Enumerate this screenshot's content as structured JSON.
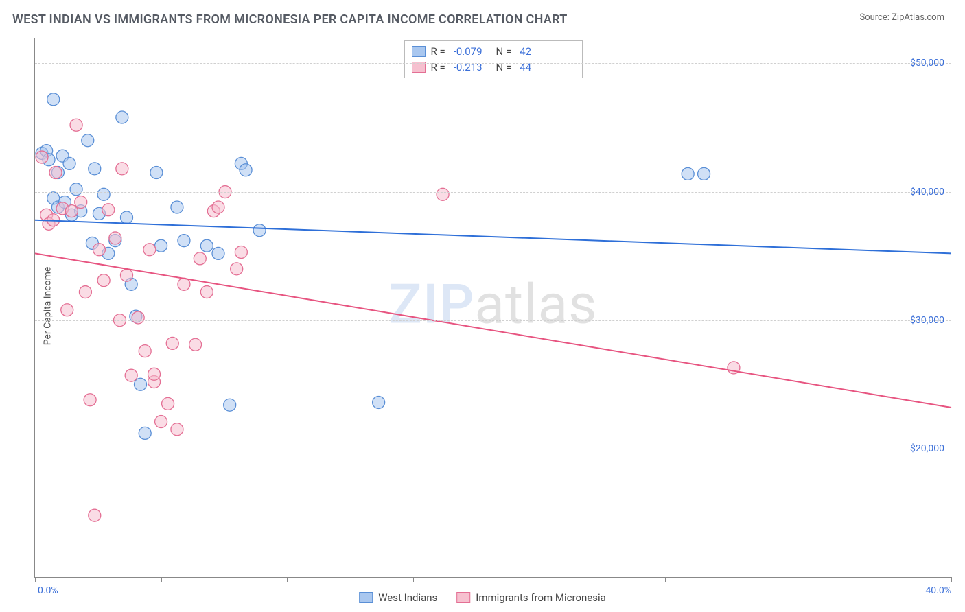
{
  "title": "WEST INDIAN VS IMMIGRANTS FROM MICRONESIA PER CAPITA INCOME CORRELATION CHART",
  "source_label": "Source: ",
  "source_name": "ZipAtlas.com",
  "y_axis_label": "Per Capita Income",
  "watermark": {
    "part1": "ZIP",
    "part2": "atlas"
  },
  "chart": {
    "type": "scatter",
    "x_domain": [
      0,
      40
    ],
    "y_domain": [
      10000,
      52000
    ],
    "y_ticks": [
      {
        "v": 20000,
        "label": "$20,000"
      },
      {
        "v": 30000,
        "label": "$30,000"
      },
      {
        "v": 40000,
        "label": "$40,000"
      },
      {
        "v": 50000,
        "label": "$50,000"
      }
    ],
    "x_tick_positions": [
      0,
      5.5,
      11,
      16.5,
      22,
      27.5,
      33,
      40
    ],
    "x_tick_labels": {
      "left": "0.0%",
      "right": "40.0%"
    },
    "grid_color": "#d0d0d0",
    "background_color": "#ffffff",
    "marker_radius": 9,
    "marker_opacity": 0.55,
    "line_width": 2,
    "series": [
      {
        "name": "West Indians",
        "fill": "#a9c7ef",
        "stroke": "#5a8fd6",
        "line_color": "#2e6fd8",
        "R": "-0.079",
        "N": "42",
        "trend": {
          "x1": 0,
          "y1": 37800,
          "x2": 40,
          "y2": 35200
        },
        "points": [
          [
            0.3,
            43000
          ],
          [
            0.5,
            43200
          ],
          [
            0.6,
            42500
          ],
          [
            0.8,
            47200
          ],
          [
            0.8,
            39500
          ],
          [
            1.0,
            41500
          ],
          [
            1.0,
            38800
          ],
          [
            1.2,
            42800
          ],
          [
            1.3,
            39200
          ],
          [
            1.5,
            42200
          ],
          [
            1.6,
            38200
          ],
          [
            1.8,
            40200
          ],
          [
            2.0,
            38500
          ],
          [
            2.3,
            44000
          ],
          [
            2.5,
            36000
          ],
          [
            2.6,
            41800
          ],
          [
            2.8,
            38300
          ],
          [
            3.0,
            39800
          ],
          [
            3.2,
            35200
          ],
          [
            3.5,
            36200
          ],
          [
            3.8,
            45800
          ],
          [
            4.0,
            38000
          ],
          [
            4.2,
            32800
          ],
          [
            4.4,
            30300
          ],
          [
            4.6,
            25000
          ],
          [
            4.8,
            21200
          ],
          [
            5.3,
            41500
          ],
          [
            5.5,
            35800
          ],
          [
            6.2,
            38800
          ],
          [
            6.5,
            36200
          ],
          [
            7.5,
            35800
          ],
          [
            8.0,
            35200
          ],
          [
            8.5,
            23400
          ],
          [
            9.0,
            42200
          ],
          [
            9.2,
            41700
          ],
          [
            9.8,
            37000
          ],
          [
            15.0,
            23600
          ],
          [
            28.5,
            41400
          ],
          [
            29.2,
            41400
          ]
        ]
      },
      {
        "name": "Immigrants from Micronesia",
        "fill": "#f6c0cf",
        "stroke": "#e46f94",
        "line_color": "#e75480",
        "R": "-0.213",
        "N": "44",
        "trend": {
          "x1": 0,
          "y1": 35200,
          "x2": 40,
          "y2": 23200
        },
        "points": [
          [
            0.3,
            42700
          ],
          [
            0.5,
            38200
          ],
          [
            0.6,
            37500
          ],
          [
            0.8,
            37800
          ],
          [
            0.9,
            41500
          ],
          [
            1.2,
            38700
          ],
          [
            1.4,
            30800
          ],
          [
            1.6,
            38500
          ],
          [
            1.8,
            45200
          ],
          [
            2.0,
            39200
          ],
          [
            2.2,
            32200
          ],
          [
            2.4,
            23800
          ],
          [
            2.6,
            14800
          ],
          [
            2.8,
            35500
          ],
          [
            3.0,
            33100
          ],
          [
            3.2,
            38600
          ],
          [
            3.5,
            36400
          ],
          [
            3.7,
            30000
          ],
          [
            3.8,
            41800
          ],
          [
            4.0,
            33500
          ],
          [
            4.2,
            25700
          ],
          [
            4.5,
            30200
          ],
          [
            4.8,
            27600
          ],
          [
            5.0,
            35500
          ],
          [
            5.2,
            25200
          ],
          [
            5.2,
            25800
          ],
          [
            5.5,
            22100
          ],
          [
            5.8,
            23500
          ],
          [
            6.0,
            28200
          ],
          [
            6.2,
            21500
          ],
          [
            6.5,
            32800
          ],
          [
            7.0,
            28100
          ],
          [
            7.2,
            34800
          ],
          [
            7.5,
            32200
          ],
          [
            7.8,
            38500
          ],
          [
            8.0,
            38800
          ],
          [
            8.3,
            40000
          ],
          [
            8.8,
            34000
          ],
          [
            9.0,
            35300
          ],
          [
            17.8,
            39800
          ],
          [
            30.5,
            26300
          ]
        ]
      }
    ]
  },
  "stat_legend_label_R": "R =",
  "stat_legend_label_N": "N ="
}
